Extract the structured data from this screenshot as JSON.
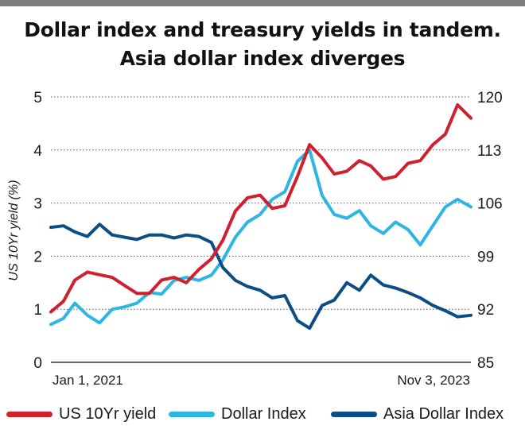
{
  "chart_data": {
    "type": "line",
    "title": "Dollar index and treasury yields in tandem. Asia dollar index diverges",
    "title_lines": [
      "Dollar index and treasury yields in tandem.",
      "Asia dollar index diverges"
    ],
    "ylabel_left": "US 10Yr yield (%)",
    "ylim_left": [
      0,
      5
    ],
    "yticks_left": [
      "0",
      "1",
      "2",
      "3",
      "4",
      "5"
    ],
    "ylim_right": [
      85,
      120
    ],
    "yticks_right": [
      "85",
      "92",
      "99",
      "106",
      "113",
      "120"
    ],
    "x_range": [
      "2021-01-01",
      "2023-11-03"
    ],
    "x_tick_labels": [
      "Jan 1, 2021",
      "Nov 3, 2023"
    ],
    "grid": "horizontal dotted",
    "legend_position": "bottom",
    "series": [
      {
        "name": "US 10Yr yield",
        "axis": "left",
        "color": "#d0202e",
        "x": [
          "2021-01-01",
          "2021-02-01",
          "2021-03-01",
          "2021-04-01",
          "2021-05-01",
          "2021-06-01",
          "2021-07-01",
          "2021-08-01",
          "2021-09-01",
          "2021-10-01",
          "2021-11-01",
          "2021-12-01",
          "2022-01-01",
          "2022-02-01",
          "2022-03-01",
          "2022-04-01",
          "2022-05-01",
          "2022-06-01",
          "2022-07-01",
          "2022-08-01",
          "2022-09-01",
          "2022-10-01",
          "2022-11-01",
          "2022-12-01",
          "2023-01-01",
          "2023-02-01",
          "2023-03-01",
          "2023-04-01",
          "2023-05-01",
          "2023-06-01",
          "2023-07-01",
          "2023-08-01",
          "2023-09-01",
          "2023-10-01",
          "2023-11-03"
        ],
        "values": [
          0.95,
          1.15,
          1.55,
          1.7,
          1.65,
          1.6,
          1.45,
          1.3,
          1.3,
          1.55,
          1.6,
          1.5,
          1.75,
          1.95,
          2.3,
          2.85,
          3.1,
          3.15,
          2.9,
          2.95,
          3.5,
          4.1,
          3.85,
          3.55,
          3.6,
          3.8,
          3.7,
          3.45,
          3.5,
          3.75,
          3.8,
          4.1,
          4.3,
          4.85,
          4.6
        ]
      },
      {
        "name": "Dollar Index",
        "axis": "right",
        "color": "#2eb6e3",
        "x": [
          "2021-01-01",
          "2021-02-01",
          "2021-03-01",
          "2021-04-01",
          "2021-05-01",
          "2021-06-01",
          "2021-07-01",
          "2021-08-01",
          "2021-09-01",
          "2021-10-01",
          "2021-11-01",
          "2021-12-01",
          "2022-01-01",
          "2022-02-01",
          "2022-03-01",
          "2022-04-01",
          "2022-05-01",
          "2022-06-01",
          "2022-07-01",
          "2022-08-01",
          "2022-09-01",
          "2022-10-01",
          "2022-11-01",
          "2022-12-01",
          "2023-01-01",
          "2023-02-01",
          "2023-03-01",
          "2023-04-01",
          "2023-05-01",
          "2023-06-01",
          "2023-07-01",
          "2023-08-01",
          "2023-09-01",
          "2023-10-01",
          "2023-11-03"
        ],
        "values": [
          90.0,
          90.8,
          92.8,
          91.2,
          90.2,
          92.0,
          92.3,
          92.8,
          94.2,
          94.0,
          95.8,
          96.2,
          95.8,
          96.5,
          98.5,
          101.5,
          103.5,
          104.5,
          106.5,
          107.5,
          111.5,
          113.0,
          107.0,
          104.5,
          104.0,
          105.0,
          103.0,
          102.0,
          103.5,
          102.5,
          100.5,
          103.0,
          105.5,
          106.5,
          105.5
        ]
      },
      {
        "name": "Asia Dollar Index",
        "axis": "right",
        "color": "#0d4d86",
        "x": [
          "2021-01-01",
          "2021-02-01",
          "2021-03-01",
          "2021-04-01",
          "2021-05-01",
          "2021-06-01",
          "2021-07-01",
          "2021-08-01",
          "2021-09-01",
          "2021-10-01",
          "2021-11-01",
          "2021-12-01",
          "2022-01-01",
          "2022-02-01",
          "2022-03-01",
          "2022-04-01",
          "2022-05-01",
          "2022-06-01",
          "2022-07-01",
          "2022-08-01",
          "2022-09-01",
          "2022-10-01",
          "2022-11-01",
          "2022-12-01",
          "2023-01-01",
          "2023-02-01",
          "2023-03-01",
          "2023-04-01",
          "2023-05-01",
          "2023-06-01",
          "2023-07-01",
          "2023-08-01",
          "2023-09-01",
          "2023-10-01",
          "2023-11-03"
        ],
        "values": [
          102.8,
          103.0,
          102.2,
          101.6,
          103.2,
          101.8,
          101.5,
          101.2,
          101.8,
          101.8,
          101.4,
          101.8,
          101.6,
          100.8,
          97.5,
          95.8,
          95.0,
          94.5,
          93.5,
          93.8,
          90.5,
          89.5,
          92.5,
          93.2,
          95.5,
          94.5,
          96.5,
          95.2,
          94.8,
          94.2,
          93.5,
          92.5,
          91.8,
          91.0,
          91.2
        ]
      }
    ]
  }
}
